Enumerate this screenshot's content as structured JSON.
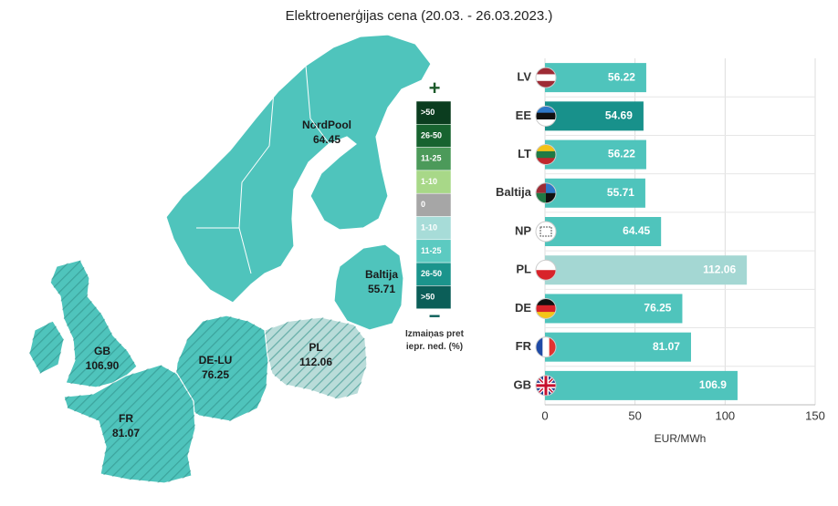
{
  "title": "Elektroenerģijas cena (20.03. - 26.03.2023.)",
  "chart_data": [
    {
      "type": "map",
      "categories": [
        "NordPool",
        "Baltija",
        "GB",
        "DE-LU",
        "PL",
        "FR"
      ],
      "values": [
        64.45,
        55.71,
        106.9,
        76.25,
        112.06,
        81.07
      ],
      "value_labels": [
        "64.45",
        "55.71",
        "106.90",
        "76.25",
        "112.06",
        "81.07"
      ],
      "colors": [
        "#4fc4bc",
        "#4fc4bc",
        "#4fc4bc",
        "#4fc4bc",
        "#b9dcd9",
        "#4fc4bc"
      ],
      "hatched": [
        false,
        false,
        true,
        true,
        true,
        true
      ],
      "legend": {
        "top": "+",
        "bottom": "−",
        "caption": "Izmaiņas pret iepr. ned. (%)",
        "items": [
          ">50",
          "26-50",
          "11-25",
          "1-10",
          "0",
          "1-10",
          "11-25",
          "26-50",
          ">50"
        ],
        "colors": [
          "#0b3d1f",
          "#17632f",
          "#4c9a5a",
          "#a8d888",
          "#a6a6a6",
          "#a7dcd8",
          "#5ccac1",
          "#1b948c",
          "#0b5e58"
        ]
      }
    },
    {
      "type": "hbar",
      "categories": [
        "LV",
        "EE",
        "LT",
        "Baltija",
        "NP",
        "PL",
        "DE",
        "FR",
        "GB"
      ],
      "values": [
        56.22,
        54.69,
        56.22,
        55.71,
        64.45,
        112.06,
        76.25,
        81.07,
        106.9
      ],
      "colors": [
        "#4fc4bc",
        "#18918b",
        "#4fc4bc",
        "#4fc4bc",
        "#4fc4bc",
        "#a4d7d3",
        "#4fc4bc",
        "#4fc4bc",
        "#4fc4bc"
      ],
      "xlim": [
        0,
        150
      ],
      "xticks": [
        0,
        50,
        100,
        150
      ],
      "xlabel": "EUR/MWh",
      "grid": true
    }
  ]
}
